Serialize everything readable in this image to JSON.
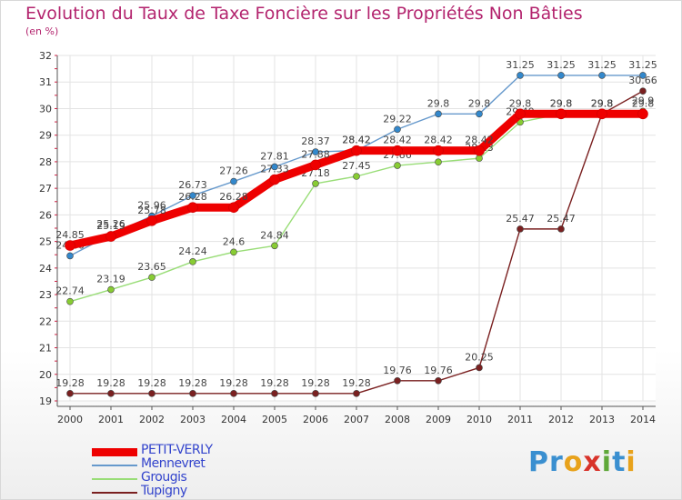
{
  "title": "Evolution du Taux de Taxe Foncière sur les Propriétés Non Bâties",
  "unit": "(en %)",
  "logo": {
    "letters": [
      "P",
      "r",
      "o",
      "x",
      "i",
      "t",
      "i"
    ],
    "colors": [
      "#3a8fd0",
      "#3a8fd0",
      "#e8a21b",
      "#d8332a",
      "#5fa839",
      "#3a8fd0",
      "#e8a21b"
    ]
  },
  "chart_data": {
    "type": "line",
    "categories": [
      "2000",
      "2001",
      "2002",
      "2003",
      "2004",
      "2005",
      "2006",
      "2007",
      "2008",
      "2009",
      "2010",
      "2011",
      "2012",
      "2013",
      "2014"
    ],
    "ylim": [
      19,
      32
    ],
    "yticks": [
      "19",
      "20",
      "21",
      "22",
      "23",
      "24",
      "25",
      "26",
      "27",
      "28",
      "29",
      "30",
      "31",
      "32"
    ],
    "grid": true,
    "series": [
      {
        "name": "Tupigny",
        "color": "#7a2020",
        "marker": "#7a2020",
        "values": [
          19.28,
          19.28,
          19.28,
          19.28,
          19.28,
          19.28,
          19.28,
          19.28,
          19.76,
          19.76,
          20.25,
          25.47,
          25.47,
          29.8,
          30.66
        ],
        "labels": [
          "19.28",
          "19.28",
          "19.28",
          "19.28",
          "19.28",
          "19.28",
          "19.28",
          "19.28",
          "19.76",
          "19.76",
          "20.25",
          "25.47",
          "25.47",
          "29.8",
          "30.66"
        ]
      },
      {
        "name": "Grougis",
        "color": "#99dd77",
        "marker": "#88cc33",
        "values": [
          22.74,
          23.19,
          23.65,
          24.24,
          24.6,
          24.84,
          27.18,
          27.45,
          27.86,
          27.99,
          28.13,
          29.49,
          29.8,
          29.8,
          29.9
        ],
        "labels": [
          "22.74",
          "23.19",
          "23.65",
          "24.24",
          "24.6",
          "24.84",
          "27.18",
          "27.45",
          "27.86",
          "27.99",
          "28.13",
          "29.49",
          "29.8",
          "29.8",
          "29.9"
        ]
      },
      {
        "name": "Mennevret",
        "color": "#6699cc",
        "marker": "#3388cc",
        "values": [
          24.46,
          25.26,
          25.96,
          26.73,
          27.26,
          27.81,
          28.37,
          28.42,
          29.22,
          29.8,
          29.8,
          31.25,
          31.25,
          31.25,
          31.25
        ],
        "labels": [
          "24.46",
          "25.26",
          "25.96",
          "26.73",
          "27.26",
          "27.81",
          "28.37",
          "28.42",
          "29.22",
          "29.8",
          "29.8",
          "31.25",
          "31.25",
          "31.25",
          "31.25"
        ]
      },
      {
        "name": "PETIT-VERLY",
        "color": "#ee0000",
        "marker": "#ee0000",
        "values": [
          24.85,
          25.19,
          25.78,
          26.28,
          26.28,
          27.33,
          27.88,
          28.42,
          28.42,
          28.42,
          28.42,
          29.8,
          29.8,
          29.8,
          29.8
        ],
        "labels": [
          "24.85",
          "25.19",
          "25.78",
          "26.28",
          "26.28",
          "27.33",
          "27.88",
          "28.42",
          "28.42",
          "28.42",
          "28.42",
          "29.8",
          "29.8",
          "29.8",
          "29.8"
        ]
      }
    ],
    "legend": {
      "position": "bottom-left",
      "entries": [
        {
          "name": "PETIT-VERLY",
          "color": "#ee0000"
        },
        {
          "name": "Mennevret",
          "color": "#6699cc"
        },
        {
          "name": "Grougis",
          "color": "#99dd77"
        },
        {
          "name": "Tupigny",
          "color": "#7a2020"
        }
      ]
    }
  }
}
